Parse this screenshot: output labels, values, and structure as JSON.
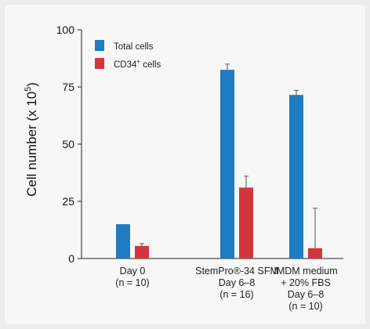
{
  "chart_data": {
    "type": "bar",
    "title": "",
    "xlabel": "",
    "ylabel_main": "Cell number (x 10",
    "ylabel_sup": "5",
    "ylabel_end": ")",
    "ylim": [
      0,
      100
    ],
    "yticks": [
      "0",
      "25",
      "50",
      "75",
      "100"
    ],
    "grid": false,
    "legend_position": "top-left",
    "categories": [
      [
        "Day 0",
        "(n = 10)"
      ],
      [
        "StemPro®-34 SFM",
        "Day 6–8",
        "(n = 16)"
      ],
      [
        "IMDM medium",
        "+ 20% FBS",
        "Day 6–8",
        "(n = 10)"
      ]
    ],
    "series": [
      {
        "name": "Total cells",
        "color": "#1f7cc0",
        "values": [
          15,
          82.5,
          71.5
        ],
        "errors": [
          0,
          2.5,
          2
        ]
      },
      {
        "name_main": "CD34",
        "name_sup": "+",
        "name_end": " cells",
        "color": "#d0373c",
        "values": [
          5.5,
          31,
          4.5
        ],
        "errors": [
          1,
          5,
          17.5
        ]
      }
    ]
  }
}
